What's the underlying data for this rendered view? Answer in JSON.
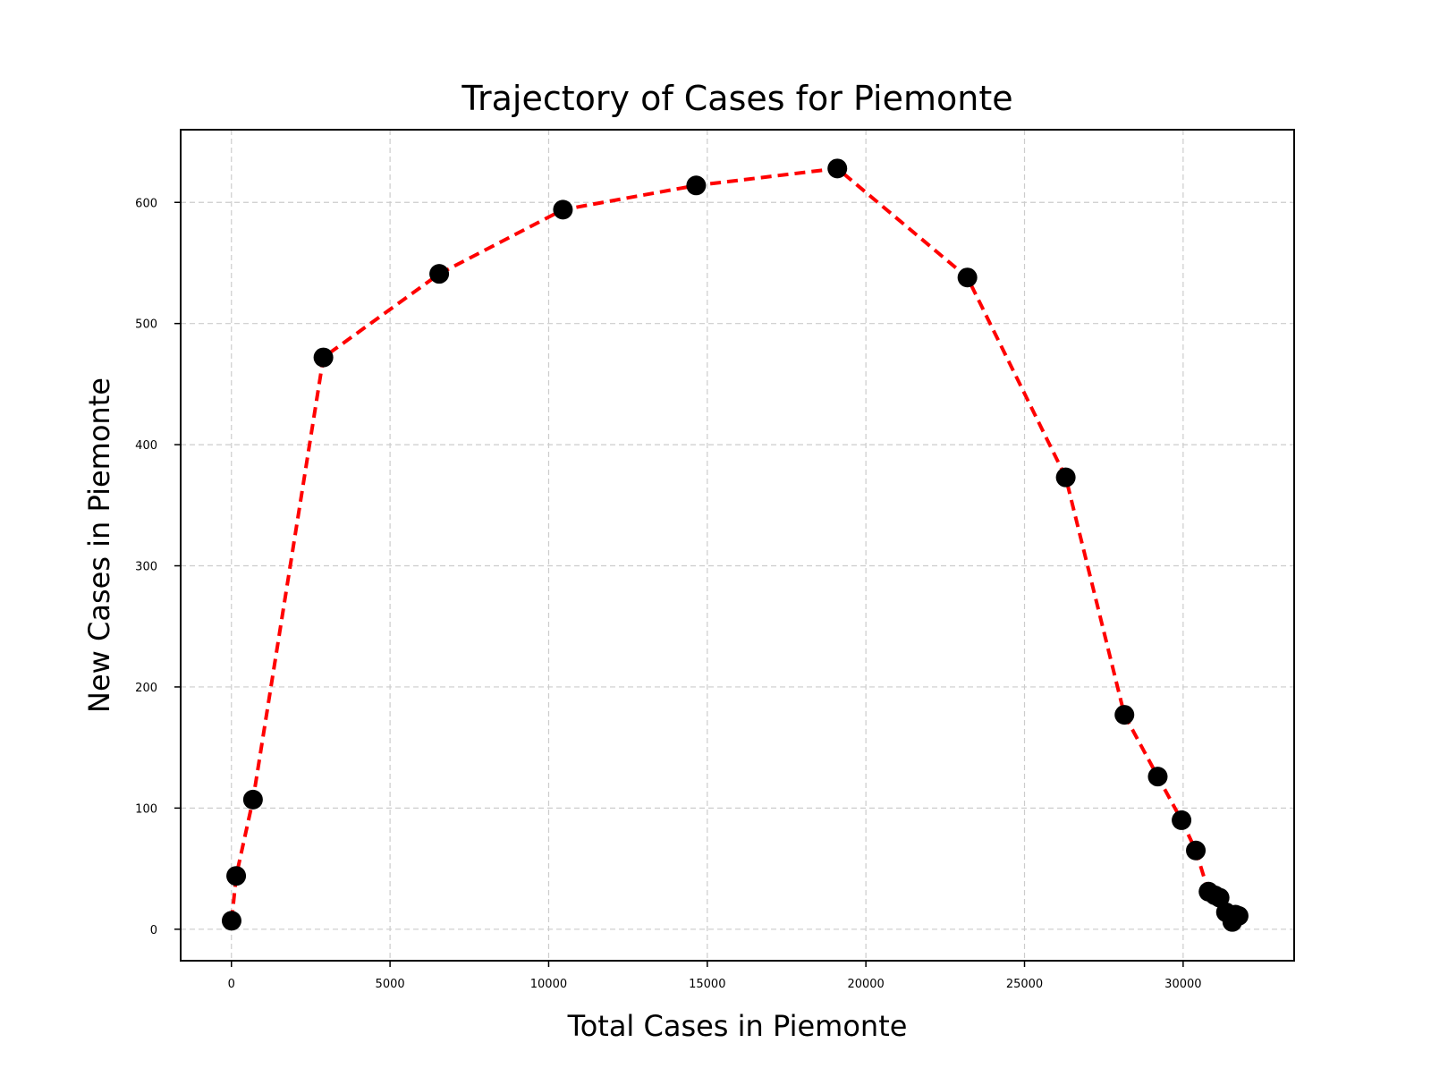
{
  "chart_data": {
    "type": "scatter",
    "title": "Trajectory of Cases for Piemonte",
    "xlabel": "Total Cases in Piemonte",
    "ylabel": "New Cases in Piemonte",
    "xlim": [
      -1600,
      33500
    ],
    "ylim": [
      -26,
      660
    ],
    "xticks": [
      0,
      5000,
      10000,
      15000,
      20000,
      25000,
      30000
    ],
    "yticks": [
      0,
      100,
      200,
      300,
      400,
      500,
      600
    ],
    "grid": true,
    "line_style": "dashed",
    "line_color": "#ff0000",
    "marker_color": "#000000",
    "series": [
      {
        "x": [
          6,
          150,
          680,
          2900,
          6550,
          10450,
          14650,
          19100,
          23200,
          26300,
          28150,
          29200,
          29950,
          30400,
          30800,
          31000,
          31150,
          31350,
          31550,
          31650,
          31750
        ],
        "y": [
          7,
          44,
          107,
          472,
          541,
          594,
          614,
          628,
          538,
          373,
          177,
          126,
          90,
          65,
          31,
          28,
          26,
          14,
          6,
          12,
          11
        ]
      }
    ]
  }
}
